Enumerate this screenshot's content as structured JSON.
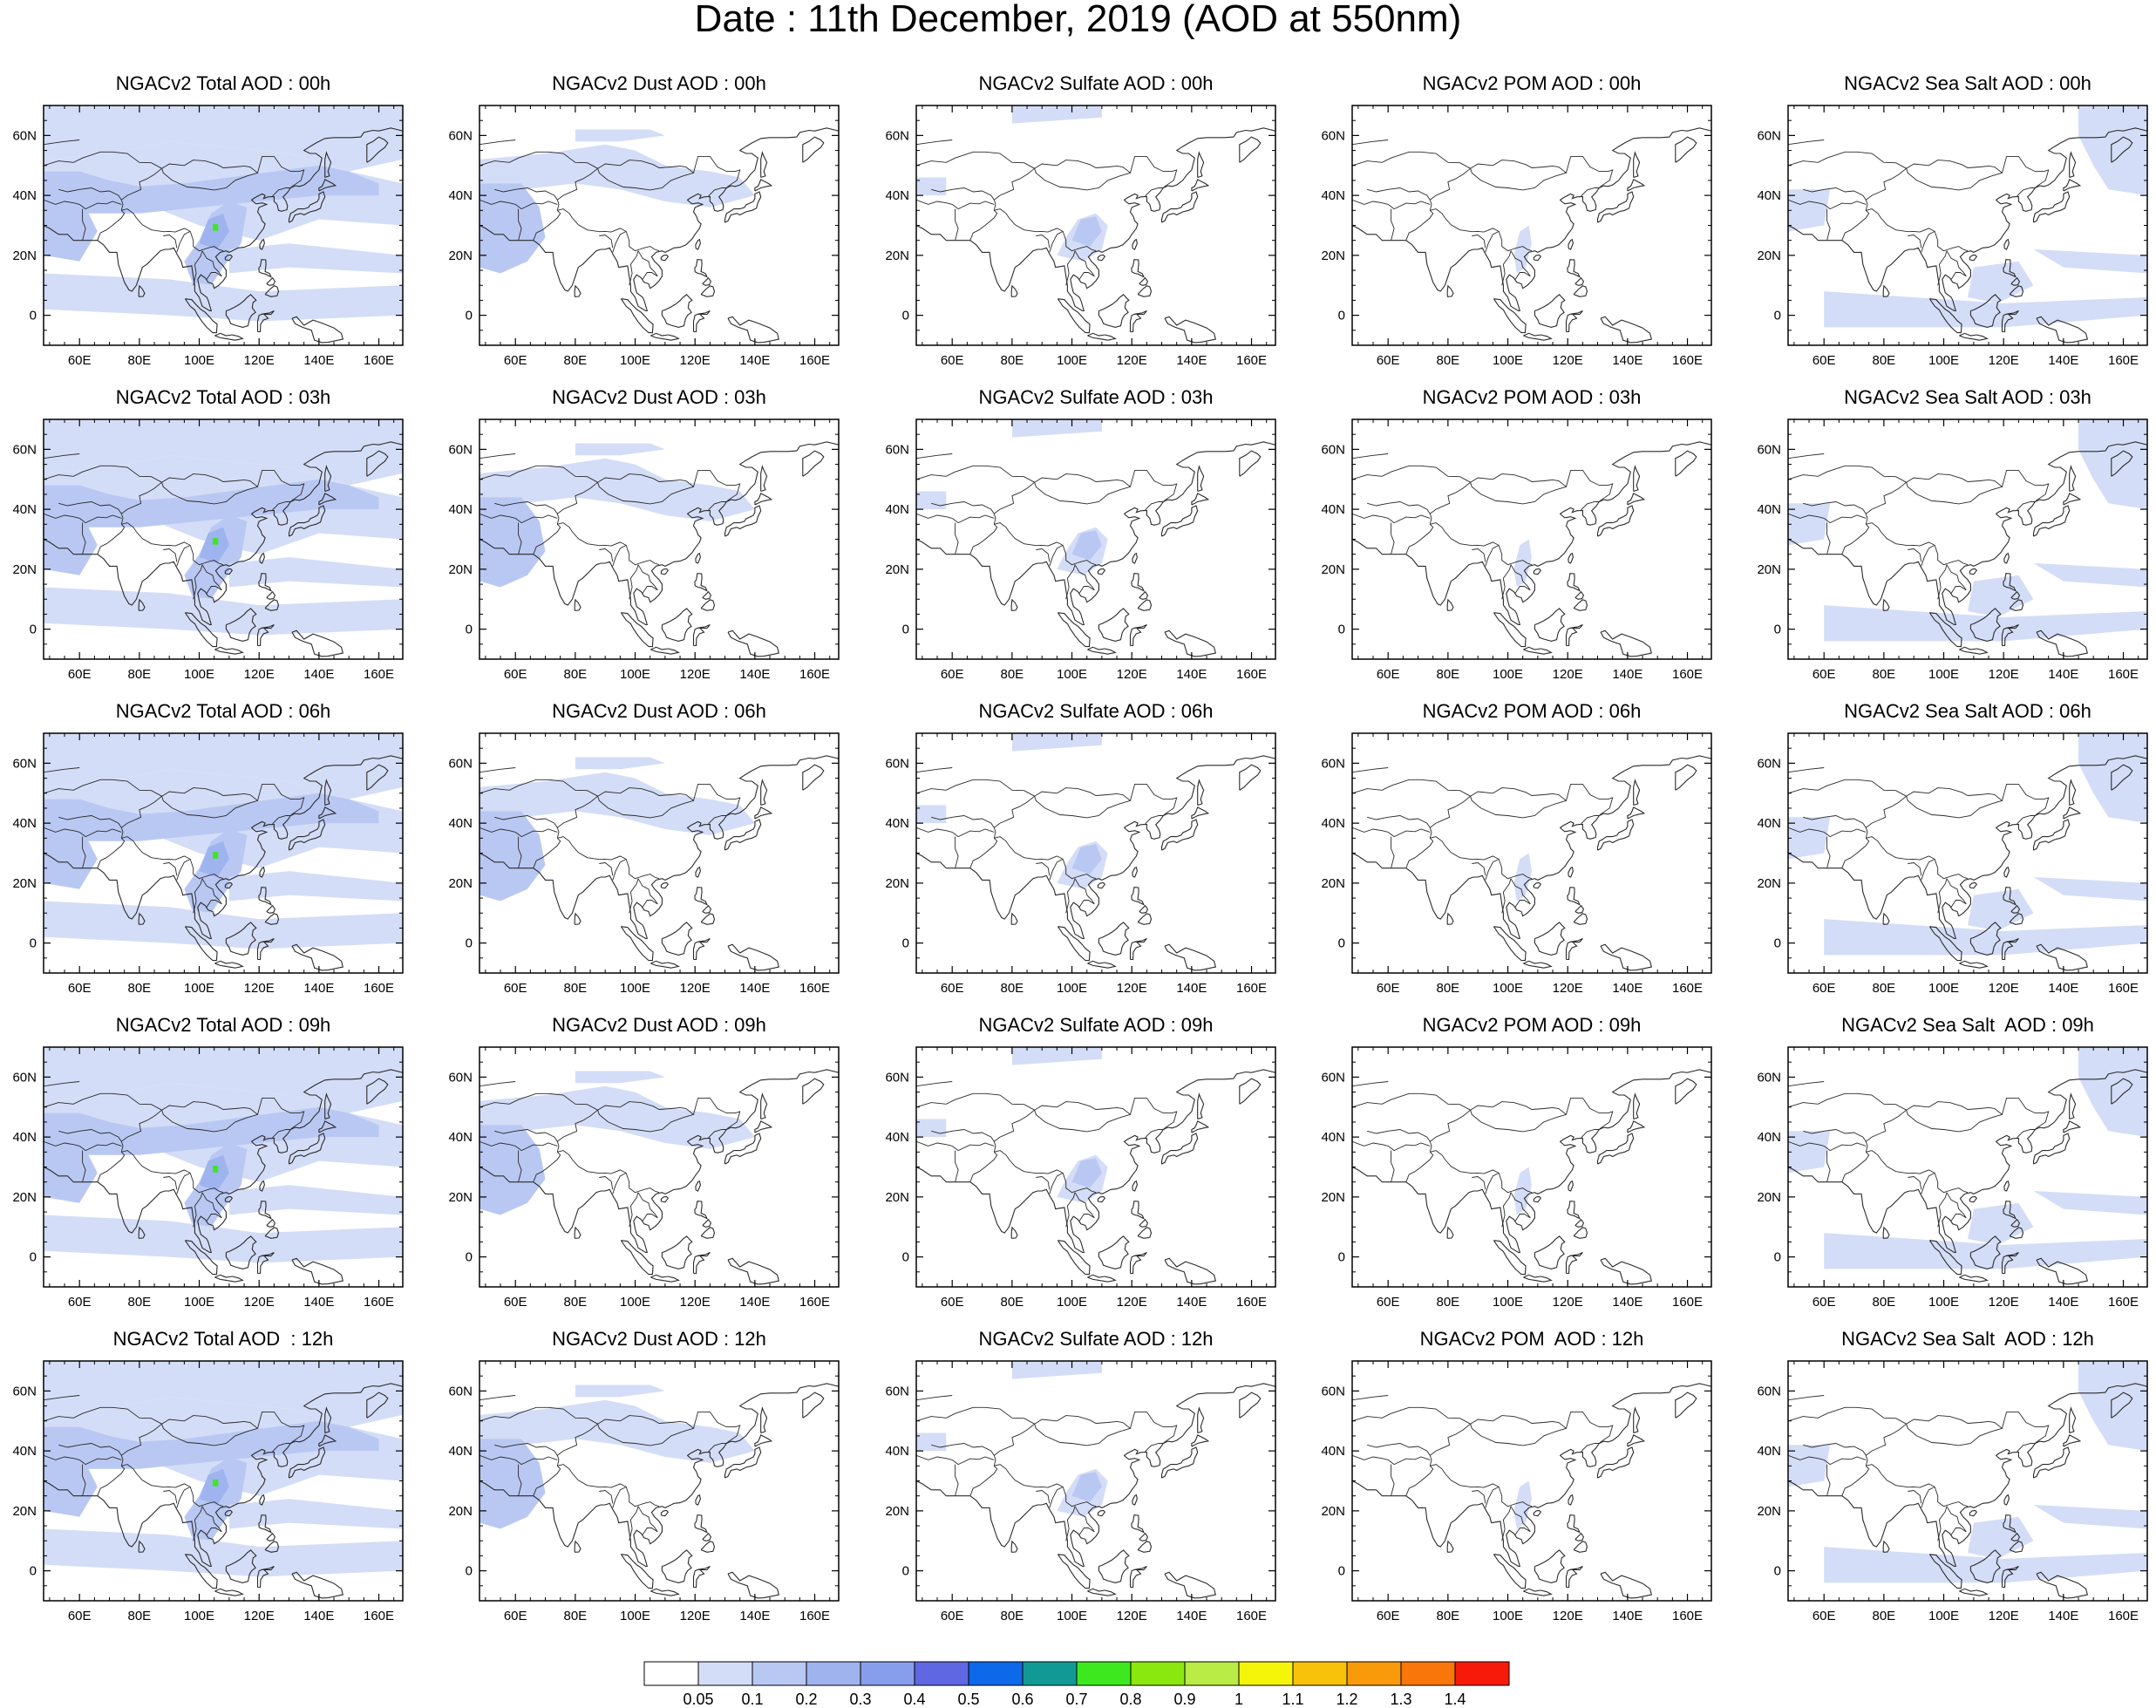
{
  "title": "Date : 11th December, 2019 (AOD at 550nm)",
  "map": {
    "region": "Asia",
    "lon_ticks": [
      "60E",
      "80E",
      "100E",
      "120E",
      "140E",
      "160E"
    ],
    "lat_ticks": [
      "60N",
      "40N",
      "20N",
      "0"
    ],
    "lon_range": [
      48,
      168
    ],
    "lat_range": [
      -10,
      70
    ]
  },
  "panels": [
    {
      "title": "NGACv2 Total AOD : 00h",
      "species": "total",
      "hour": "00h"
    },
    {
      "title": "NGACv2 Dust AOD : 00h",
      "species": "dust",
      "hour": "00h"
    },
    {
      "title": "NGACv2 Sulfate AOD : 00h",
      "species": "sulfate",
      "hour": "00h"
    },
    {
      "title": "NGACv2 POM AOD : 00h",
      "species": "pom",
      "hour": "00h"
    },
    {
      "title": "NGACv2 Sea Salt AOD : 00h",
      "species": "seasalt",
      "hour": "00h"
    },
    {
      "title": "NGACv2 Total AOD : 03h",
      "species": "total",
      "hour": "03h"
    },
    {
      "title": "NGACv2 Dust AOD : 03h",
      "species": "dust",
      "hour": "03h"
    },
    {
      "title": "NGACv2 Sulfate AOD : 03h",
      "species": "sulfate",
      "hour": "03h"
    },
    {
      "title": "NGACv2 POM AOD : 03h",
      "species": "pom",
      "hour": "03h"
    },
    {
      "title": "NGACv2 Sea Salt AOD : 03h",
      "species": "seasalt",
      "hour": "03h"
    },
    {
      "title": "NGACv2 Total AOD : 06h",
      "species": "total",
      "hour": "06h"
    },
    {
      "title": "NGACv2 Dust AOD : 06h",
      "species": "dust",
      "hour": "06h"
    },
    {
      "title": "NGACv2 Sulfate AOD : 06h",
      "species": "sulfate",
      "hour": "06h"
    },
    {
      "title": "NGACv2 POM AOD : 06h",
      "species": "pom",
      "hour": "06h"
    },
    {
      "title": "NGACv2 Sea Salt AOD : 06h",
      "species": "seasalt",
      "hour": "06h"
    },
    {
      "title": "NGACv2 Total AOD : 09h",
      "species": "total",
      "hour": "09h"
    },
    {
      "title": "NGACv2 Dust AOD : 09h",
      "species": "dust",
      "hour": "09h"
    },
    {
      "title": "NGACv2 Sulfate AOD : 09h",
      "species": "sulfate",
      "hour": "09h"
    },
    {
      "title": "NGACv2 POM AOD : 09h",
      "species": "pom",
      "hour": "09h"
    },
    {
      "title": "NGACv2 Sea Salt  AOD : 09h",
      "species": "seasalt",
      "hour": "09h"
    },
    {
      "title": "NGACv2 Total AOD  : 12h",
      "species": "total",
      "hour": "12h"
    },
    {
      "title": "NGACv2 Dust AOD : 12h",
      "species": "dust",
      "hour": "12h"
    },
    {
      "title": "NGACv2 Sulfate AOD : 12h",
      "species": "sulfate",
      "hour": "12h"
    },
    {
      "title": "NGACv2 POM  AOD : 12h",
      "species": "pom",
      "hour": "12h"
    },
    {
      "title": "NGACv2 Sea Salt  AOD : 12h",
      "species": "seasalt",
      "hour": "12h"
    }
  ],
  "colorbar": {
    "labels": [
      "0.05",
      "0.1",
      "0.2",
      "0.3",
      "0.4",
      "0.5",
      "0.6",
      "0.7",
      "0.8",
      "0.9",
      "1",
      "1.1",
      "1.2",
      "1.3",
      "1.4"
    ],
    "colors": [
      "#ffffff",
      "#d4ddf7",
      "#b9c8f3",
      "#9fb3ef",
      "#869eeb",
      "#5f67e3",
      "#0d68ea",
      "#119a95",
      "#3de81e",
      "#8ae80f",
      "#b9ec45",
      "#f5f50a",
      "#f9c20a",
      "#f99a0a",
      "#f9760a",
      "#f71a0a"
    ]
  },
  "legend_colors": {
    "low": "#d4ddf7",
    "mid": "#b9c8f3",
    "high": "#9fb3ef",
    "peak": "#3de81e",
    "coast": "#2a2a2a"
  }
}
